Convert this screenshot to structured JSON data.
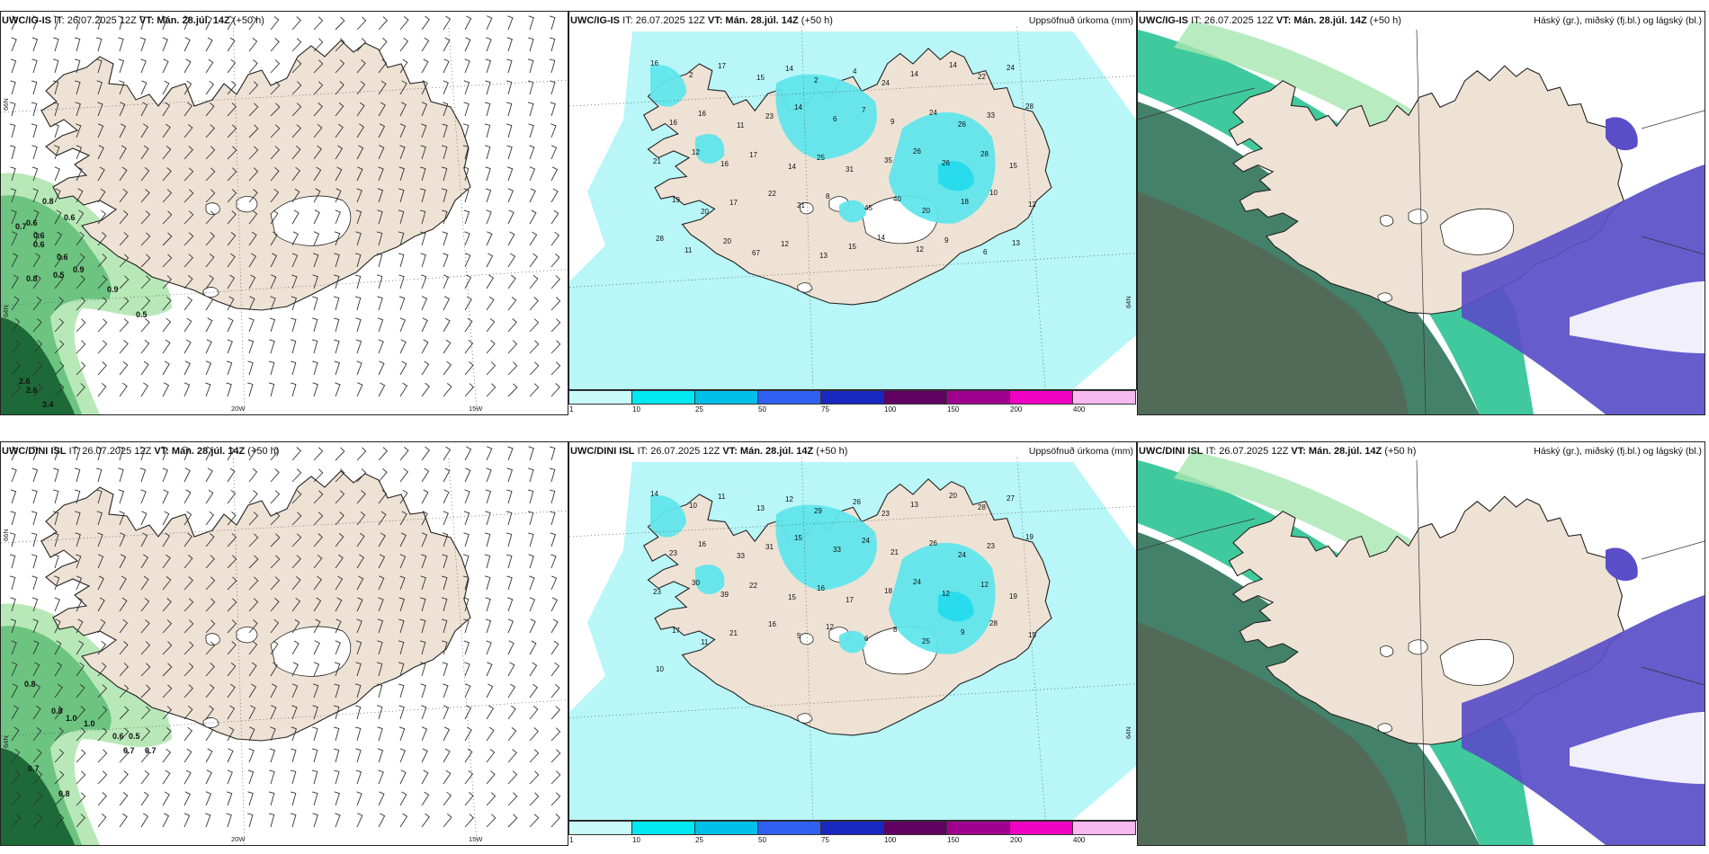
{
  "rows": [
    {
      "model": "UWC/IG-IS",
      "it": "IT: 26.07.2025 12Z",
      "vt_label": "VT:",
      "vt": "Mán. 28.júl. 14Z",
      "lead": "(+50 h)"
    },
    {
      "model": "UWC/DINI ISL",
      "it": "IT: 26.07.2025 12Z",
      "vt_label": "VT:",
      "vt": "Mán. 28.júl. 14Z",
      "lead": "(+50 h)"
    }
  ],
  "panel_titles": {
    "precip": "Uppsöfnuð úrkoma (mm)",
    "cloud": "Háský (gr.), miðský (fj.bl.) og lágský (bl.)"
  },
  "axis_labels": {
    "lat_north": "66N",
    "lat_south": "64N",
    "lon_20w": "20W",
    "lon_15w": "15W"
  },
  "colorbar": {
    "ticks": [
      "1",
      "10",
      "25",
      "50",
      "75",
      "100",
      "150",
      "200",
      "400"
    ],
    "colors": [
      "#c8fafa",
      "#00e8f0",
      "#00c0e8",
      "#3060f0",
      "#1828c0",
      "#600060",
      "#a00090",
      "#f000c0",
      "#f8b8f0"
    ]
  },
  "wind_panel_values": [
    [
      "0.8",
      "0.7",
      "0.6",
      "0.6",
      "0.6",
      "0.6",
      "0.6",
      "0.8",
      "0.5",
      "0.9",
      "0.9",
      "0.5",
      "2.6",
      "2.6",
      "3.4"
    ],
    [
      "0.8",
      "0.8",
      "1.0",
      "1.0",
      "0.6",
      "0.5",
      "0.7",
      "0.7",
      "0.7",
      "0.8"
    ]
  ],
  "precip_values": [
    [
      "16",
      "2",
      "17",
      "15",
      "14",
      "2",
      "4",
      "24",
      "14",
      "14",
      "22",
      "24",
      "16",
      "16",
      "11",
      "23",
      "14",
      "6",
      "7",
      "9",
      "24",
      "26",
      "33",
      "28",
      "21",
      "12",
      "16",
      "17",
      "14",
      "25",
      "31",
      "35",
      "26",
      "26",
      "28",
      "15",
      "19",
      "20",
      "17",
      "22",
      "21",
      "8",
      "45",
      "40",
      "20",
      "18",
      "10",
      "12",
      "28",
      "11",
      "20",
      "67",
      "12",
      "13",
      "15",
      "14",
      "12",
      "9",
      "6",
      "13"
    ],
    [
      "14",
      "10",
      "11",
      "13",
      "12",
      "29",
      "26",
      "23",
      "13",
      "20",
      "28",
      "27",
      "23",
      "16",
      "33",
      "31",
      "15",
      "33",
      "24",
      "21",
      "26",
      "24",
      "23",
      "19",
      "23",
      "30",
      "39",
      "22",
      "15",
      "16",
      "17",
      "18",
      "24",
      "12",
      "12",
      "19",
      "17",
      "11",
      "21",
      "16",
      "5",
      "12",
      "6",
      "8",
      "25",
      "9",
      "28",
      "15",
      "10"
    ]
  ],
  "colors": {
    "land": "#eee2d4",
    "precip_light": "#b8f6f8",
    "precip_mid": "#60e6ec",
    "precip_high": "#1edcf0",
    "wind_green_light": "#b8e8b8",
    "wind_green_mid": "#6cc480",
    "wind_green_dark": "#1d6a38",
    "cloud_high": "#3a7a62",
    "cloud_mid": "#1ec08c",
    "cloud_low": "#5a4ec8"
  }
}
